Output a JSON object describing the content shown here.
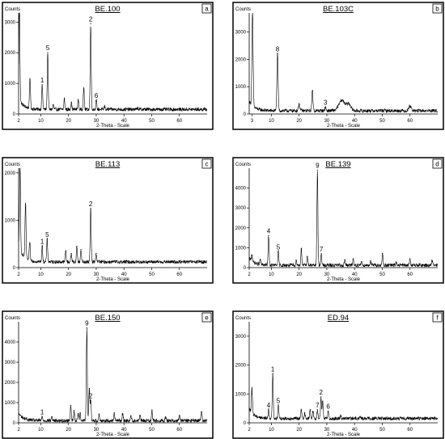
{
  "chart_data": [
    {
      "type": "line",
      "panel_letter": "a",
      "title": "BE.100",
      "ylabel": "Counts",
      "xlabel": "2-Theta - Scale",
      "xlim": [
        2,
        70
      ],
      "ylim": [
        0,
        3300
      ],
      "xticks": [
        2,
        10,
        20,
        30,
        40,
        50,
        60
      ],
      "yticks": [
        0,
        1000,
        2000,
        3000
      ],
      "baseline": 150,
      "peaks": [
        {
          "x": 2.3,
          "y": 3200,
          "w": 0.25
        },
        {
          "x": 6.1,
          "y": 1150,
          "w": 0.25
        },
        {
          "x": 10.5,
          "y": 950,
          "w": 0.25,
          "label": "1"
        },
        {
          "x": 12.5,
          "y": 2000,
          "w": 0.25,
          "label": "5"
        },
        {
          "x": 14.5,
          "y": 300,
          "w": 0.25
        },
        {
          "x": 18.5,
          "y": 500,
          "w": 0.25
        },
        {
          "x": 21.0,
          "y": 380,
          "w": 0.25
        },
        {
          "x": 23.5,
          "y": 450,
          "w": 0.25
        },
        {
          "x": 25.5,
          "y": 850,
          "w": 0.25
        },
        {
          "x": 28.0,
          "y": 2950,
          "w": 0.25,
          "label": "2"
        },
        {
          "x": 30.0,
          "y": 450,
          "w": 0.25,
          "label": "6"
        },
        {
          "x": 33.0,
          "y": 250,
          "w": 0.25
        },
        {
          "x": 45.0,
          "y": 200,
          "w": 0.25
        }
      ]
    },
    {
      "type": "line",
      "panel_letter": "b",
      "title": "BE.103C",
      "ylabel": "Counts",
      "xlabel": "2-Theta - Scale",
      "xlim": [
        2,
        70
      ],
      "ylim": [
        0,
        3700
      ],
      "xticks": [
        3,
        10,
        20,
        30,
        40,
        50,
        60
      ],
      "yticks": [
        0,
        1000,
        2000,
        3000
      ],
      "baseline": 120,
      "peaks": [
        {
          "x": 3.2,
          "y": 3500,
          "w": 0.3
        },
        {
          "x": 12.2,
          "y": 2200,
          "w": 0.3,
          "label": "8"
        },
        {
          "x": 20.0,
          "y": 350,
          "w": 0.4
        },
        {
          "x": 24.8,
          "y": 850,
          "w": 0.3
        },
        {
          "x": 29.5,
          "y": 250,
          "w": 0.3,
          "label": "3"
        },
        {
          "x": 35.5,
          "y": 500,
          "w": 1.6
        },
        {
          "x": 38.0,
          "y": 350,
          "w": 1.0
        },
        {
          "x": 60.0,
          "y": 300,
          "w": 0.6
        }
      ]
    },
    {
      "type": "line",
      "panel_letter": "c",
      "title": "BE.113",
      "ylabel": "Counts",
      "xlabel": "2-Theta - Scale",
      "xlim": [
        2,
        70
      ],
      "ylim": [
        0,
        2100
      ],
      "xticks": [
        2,
        10,
        20,
        30,
        40,
        50,
        60
      ],
      "yticks": [
        0,
        1000,
        2000
      ],
      "baseline": 120,
      "peaks": [
        {
          "x": 2.5,
          "y": 2000,
          "w": 0.25
        },
        {
          "x": 4.5,
          "y": 1300,
          "w": 0.25
        },
        {
          "x": 6.0,
          "y": 500,
          "w": 0.25
        },
        {
          "x": 10.5,
          "y": 450,
          "w": 0.25,
          "label": "1"
        },
        {
          "x": 12.3,
          "y": 600,
          "w": 0.25,
          "label": "5"
        },
        {
          "x": 19.0,
          "y": 350,
          "w": 0.25
        },
        {
          "x": 21.0,
          "y": 300,
          "w": 0.25
        },
        {
          "x": 23.0,
          "y": 450,
          "w": 0.25
        },
        {
          "x": 24.5,
          "y": 380,
          "w": 0.25
        },
        {
          "x": 28.0,
          "y": 1250,
          "w": 0.25,
          "label": "2"
        },
        {
          "x": 30.0,
          "y": 300,
          "w": 0.25
        }
      ]
    },
    {
      "type": "line",
      "panel_letter": "d",
      "title": "BE.139",
      "ylabel": "Counts",
      "xlabel": "2-Theta - Scale",
      "xlim": [
        2,
        70
      ],
      "ylim": [
        0,
        5000
      ],
      "xticks": [
        2,
        10,
        20,
        30,
        40,
        50,
        60
      ],
      "yticks": [
        0,
        1000,
        2000,
        3000,
        4000
      ],
      "baseline": 120,
      "peaks": [
        {
          "x": 3.0,
          "y": 500,
          "w": 0.25
        },
        {
          "x": 6.0,
          "y": 400,
          "w": 0.25
        },
        {
          "x": 9.0,
          "y": 1600,
          "w": 0.25,
          "label": "4"
        },
        {
          "x": 12.5,
          "y": 800,
          "w": 0.25,
          "label": "5"
        },
        {
          "x": 19.0,
          "y": 350,
          "w": 0.25
        },
        {
          "x": 20.8,
          "y": 950,
          "w": 0.25
        },
        {
          "x": 23.0,
          "y": 550,
          "w": 0.25
        },
        {
          "x": 26.6,
          "y": 4900,
          "w": 0.25,
          "label": "9"
        },
        {
          "x": 28.0,
          "y": 700,
          "w": 0.25,
          "label": "7"
        },
        {
          "x": 36.5,
          "y": 400,
          "w": 0.25
        },
        {
          "x": 39.5,
          "y": 450,
          "w": 0.25
        },
        {
          "x": 42.5,
          "y": 300,
          "w": 0.25
        },
        {
          "x": 45.8,
          "y": 350,
          "w": 0.25
        },
        {
          "x": 50.1,
          "y": 700,
          "w": 0.25
        },
        {
          "x": 55.0,
          "y": 250,
          "w": 0.25
        },
        {
          "x": 60.0,
          "y": 450,
          "w": 0.25
        },
        {
          "x": 68.0,
          "y": 350,
          "w": 0.25
        }
      ]
    },
    {
      "type": "line",
      "panel_letter": "e",
      "title": "BE.150",
      "ylabel": "Counts",
      "xlabel": "2-Theta - Scale",
      "xlim": [
        2,
        70
      ],
      "ylim": [
        0,
        5000
      ],
      "xticks": [
        2,
        10,
        20,
        30,
        40,
        50,
        60
      ],
      "yticks": [
        0,
        1000,
        2000,
        3000,
        4000
      ],
      "baseline": 110,
      "peaks": [
        {
          "x": 10.5,
          "y": 300,
          "w": 0.25,
          "label": "1"
        },
        {
          "x": 14.0,
          "y": 300,
          "w": 0.25
        },
        {
          "x": 20.8,
          "y": 850,
          "w": 0.25
        },
        {
          "x": 22.0,
          "y": 600,
          "w": 0.25
        },
        {
          "x": 23.5,
          "y": 450,
          "w": 0.25
        },
        {
          "x": 24.2,
          "y": 500,
          "w": 0.25
        },
        {
          "x": 26.6,
          "y": 4700,
          "w": 0.25,
          "label": "9"
        },
        {
          "x": 27.5,
          "y": 1700,
          "w": 0.25
        },
        {
          "x": 28.0,
          "y": 1100,
          "w": 0.25,
          "label": "2"
        },
        {
          "x": 31.0,
          "y": 400,
          "w": 0.25
        },
        {
          "x": 36.5,
          "y": 500,
          "w": 0.25
        },
        {
          "x": 39.5,
          "y": 450,
          "w": 0.25
        },
        {
          "x": 42.5,
          "y": 350,
          "w": 0.25
        },
        {
          "x": 45.8,
          "y": 350,
          "w": 0.25
        },
        {
          "x": 50.1,
          "y": 600,
          "w": 0.25
        },
        {
          "x": 55.0,
          "y": 300,
          "w": 0.25
        },
        {
          "x": 60.0,
          "y": 350,
          "w": 0.25
        },
        {
          "x": 68.0,
          "y": 550,
          "w": 0.25
        }
      ]
    },
    {
      "type": "line",
      "panel_letter": "f",
      "title": "ED.94",
      "ylabel": "Counts",
      "xlabel": "2-Theta - Scale",
      "xlim": [
        2,
        70
      ],
      "ylim": [
        0,
        3500
      ],
      "xticks": [
        2,
        10,
        20,
        30,
        40,
        50,
        60
      ],
      "yticks": [
        0,
        1000,
        2000,
        3000
      ],
      "baseline": 150,
      "peaks": [
        {
          "x": 3.0,
          "y": 1000,
          "w": 0.25
        },
        {
          "x": 9.0,
          "y": 450,
          "w": 0.25,
          "label": "4"
        },
        {
          "x": 10.5,
          "y": 1700,
          "w": 0.25,
          "label": "1"
        },
        {
          "x": 12.5,
          "y": 600,
          "w": 0.25,
          "label": "5"
        },
        {
          "x": 20.8,
          "y": 450,
          "w": 0.25
        },
        {
          "x": 22.0,
          "y": 350,
          "w": 0.25
        },
        {
          "x": 24.0,
          "y": 450,
          "w": 0.25
        },
        {
          "x": 25.0,
          "y": 400,
          "w": 0.25
        },
        {
          "x": 26.6,
          "y": 450,
          "w": 0.25,
          "label": "7"
        },
        {
          "x": 27.9,
          "y": 900,
          "w": 0.25,
          "label": "2"
        },
        {
          "x": 28.5,
          "y": 750,
          "w": 0.25
        },
        {
          "x": 30.5,
          "y": 400,
          "w": 0.25,
          "label": "6"
        },
        {
          "x": 35.0,
          "y": 250,
          "w": 0.25
        },
        {
          "x": 42.0,
          "y": 220,
          "w": 0.25
        }
      ]
    }
  ]
}
